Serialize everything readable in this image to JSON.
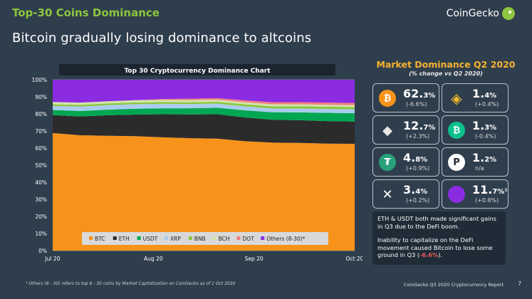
{
  "header": {
    "kicker": "Top-30 Coins Dominance",
    "headline": "Bitcoin gradually losing dominance to altcoins",
    "brand": "CoinGecko"
  },
  "chart_data": {
    "type": "area",
    "title": "Top 30 Cryptocurrency Dominance Chart",
    "stacked": true,
    "y_ticks": [
      "0%",
      "10%",
      "20%",
      "30%",
      "40%",
      "50%",
      "60%",
      "70%",
      "80%",
      "90%",
      "100%"
    ],
    "ylim": [
      0,
      100
    ],
    "x_ticks": [
      "Jul 20",
      "Aug 20",
      "Sep 20",
      "Oct 20"
    ],
    "x": [
      "Jul 20",
      "Jul 27",
      "Aug 3",
      "Aug 10",
      "Aug 17",
      "Aug 24",
      "Aug 31",
      "Sep 7",
      "Sep 14",
      "Sep 21",
      "Sep 28",
      "Oct 5"
    ],
    "series": [
      {
        "name": "BTC",
        "color": "#f7931a",
        "values": [
          68.8,
          67.5,
          67.2,
          67.0,
          66.3,
          65.8,
          65.5,
          64.0,
          63.2,
          63.0,
          62.6,
          62.5
        ]
      },
      {
        "name": "ETH",
        "color": "#2b2b2b",
        "values": [
          10.5,
          11.0,
          12.0,
          12.6,
          13.5,
          13.9,
          14.3,
          13.9,
          13.4,
          13.3,
          13.2,
          13.0
        ]
      },
      {
        "name": "USDT",
        "color": "#00a651",
        "values": [
          3.0,
          3.2,
          3.3,
          3.4,
          3.5,
          3.6,
          3.8,
          4.2,
          4.4,
          4.6,
          4.8,
          4.9
        ]
      },
      {
        "name": "XRP",
        "color": "#aaccee",
        "values": [
          2.3,
          2.6,
          2.6,
          2.7,
          2.6,
          2.5,
          2.4,
          2.3,
          2.2,
          2.3,
          2.3,
          2.3
        ]
      },
      {
        "name": "BNB",
        "color": "#8dc63f",
        "values": [
          1.0,
          1.0,
          1.0,
          1.0,
          1.0,
          1.0,
          1.1,
          1.2,
          1.2,
          1.3,
          1.3,
          1.3
        ]
      },
      {
        "name": "BCH",
        "color": "#d2e5a8",
        "values": [
          1.4,
          1.3,
          1.3,
          1.3,
          1.3,
          1.3,
          1.2,
          1.2,
          1.2,
          1.1,
          1.1,
          1.1
        ]
      },
      {
        "name": "DOT",
        "color": "#f08080",
        "values": [
          0.0,
          0.0,
          0.0,
          0.0,
          0.5,
          0.8,
          0.9,
          1.1,
          1.2,
          1.3,
          1.3,
          1.3
        ]
      },
      {
        "name": "Others (8-30)*",
        "color": "#8b2be2",
        "values": [
          13.0,
          13.4,
          12.6,
          12.0,
          11.3,
          11.1,
          10.8,
          12.1,
          13.2,
          13.1,
          13.4,
          13.6
        ]
      }
    ]
  },
  "right_panel": {
    "title": "Market Dominance Q2 2020",
    "subtitle": "(% change vs Q2 2020)",
    "cards": [
      {
        "icon": "bitcoin-icon",
        "color": "#f7931a",
        "glyph": "₿",
        "value": "62.",
        "decimal": "3%",
        "change": "(-6.6%)"
      },
      {
        "icon": "binance-icon",
        "color": "#f3ba2f",
        "glyph": "◈",
        "value": "1.",
        "decimal": "4%",
        "change": "(+0.4%)"
      },
      {
        "icon": "ethereum-icon",
        "color": "#3c3c3d",
        "glyph": "◆",
        "value": "12.",
        "decimal": "7%",
        "change": "(+2.3%)"
      },
      {
        "icon": "bitcoin-cash-icon",
        "color": "#0ac18e",
        "glyph": "₿",
        "value": "1.",
        "decimal": "3%",
        "change": "(-0.4%)"
      },
      {
        "icon": "tether-icon",
        "color": "#26a17b",
        "glyph": "₮",
        "value": "4.",
        "decimal": "8%",
        "change": "(+0.9%)"
      },
      {
        "icon": "polkadot-icon",
        "color": "#ffffff",
        "glyph": "P",
        "value": "1.",
        "decimal": "2%",
        "change": "n/a"
      },
      {
        "icon": "xrp-icon",
        "color": "#23292f",
        "glyph": "✕",
        "value": "3.",
        "decimal": "4%",
        "change": "(+0.2%)"
      },
      {
        "icon": "others-icon",
        "color": "#8b2be2",
        "glyph": "",
        "value": "11.",
        "decimal": "7%¹",
        "change": "(+0.8%)"
      }
    ],
    "note_p1": "ETH & USDT both made significant gains in Q3 due to the DeFi boom.",
    "note_p2_prefix": "Inability to capitalize on the DeFi movement caused Bitcoin to lose some ground in Q3 (",
    "note_p2_value": "-6.6%",
    "note_p2_suffix": ")."
  },
  "footer": {
    "footnote": "¹ Others (8 - 30) refers to top 8 - 30 coins by Market Capitalization on CoinGecko as of 1 Oct 2020",
    "report": "CoinGecko Q3 2020 Cryptocurrency Report",
    "page": "7"
  }
}
